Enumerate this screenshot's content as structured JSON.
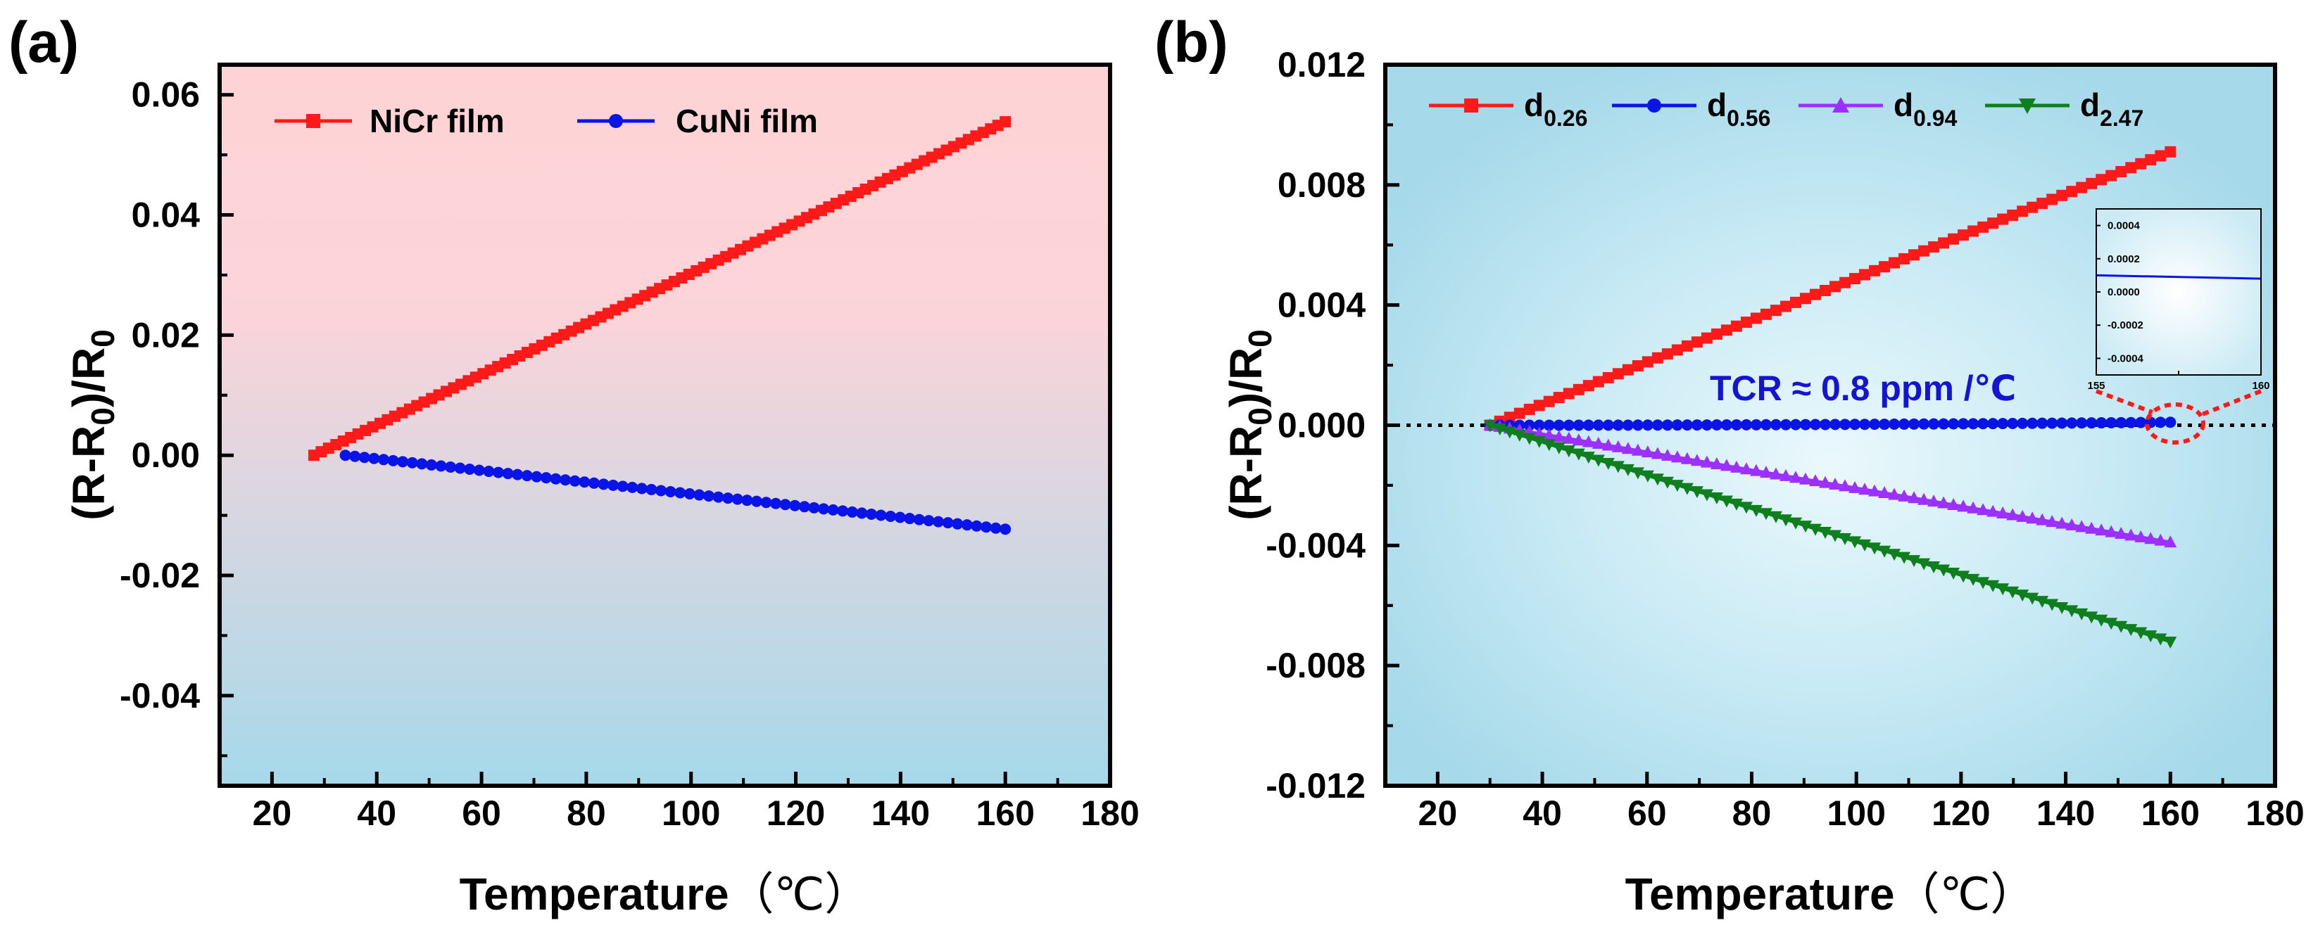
{
  "chart_data": [
    {
      "type": "line",
      "panel_label": "(a)",
      "xlabel": "Temperature",
      "xunit": "（℃）",
      "ylabel": "(R-R",
      "ylabel_sub": "0",
      "ylabel_mid": ")/R",
      "ylabel_sub2": "0",
      "xlim": [
        10,
        180
      ],
      "ylim": [
        -0.055,
        0.065
      ],
      "xticks": [
        20,
        40,
        60,
        80,
        100,
        120,
        140,
        160,
        180
      ],
      "xtick_labels": [
        "20",
        "40",
        "60",
        "80",
        "100",
        "120",
        "140",
        "160",
        "180"
      ],
      "yticks": [
        -0.04,
        -0.02,
        0.0,
        0.02,
        0.04,
        0.06
      ],
      "ytick_labels": [
        "-0.04",
        "-0.02",
        "0.00",
        "0.02",
        "0.04",
        "0.06"
      ],
      "background": {
        "top": "#ffd3d5",
        "bottom": "#a6d9ea"
      },
      "legend": {
        "placement": "top-left",
        "orientation": "horizontal"
      },
      "series": [
        {
          "name": "NiCr film",
          "color": "#ff1a1a",
          "marker": "square",
          "x_start": 28,
          "x_end": 160,
          "y_start": 0.0,
          "y_end": 0.0555,
          "n_points": 95
        },
        {
          "name": "CuNi film",
          "color": "#0a14e6",
          "marker": "circle",
          "x_start": 34,
          "x_end": 160,
          "y_start": 0.0,
          "y_end": -0.0123,
          "n_points": 70
        }
      ]
    },
    {
      "type": "line",
      "panel_label": "(b)",
      "xlabel": "Temperature",
      "xunit": "（℃）",
      "ylabel": "(R-R",
      "ylabel_sub": "0",
      "ylabel_mid": ")/R",
      "ylabel_sub2": "0",
      "xlim": [
        10,
        180
      ],
      "ylim": [
        -0.012,
        0.012
      ],
      "xticks": [
        20,
        40,
        60,
        80,
        100,
        120,
        140,
        160,
        180
      ],
      "xtick_labels": [
        "20",
        "40",
        "60",
        "80",
        "100",
        "120",
        "140",
        "160",
        "180"
      ],
      "yticks": [
        -0.012,
        -0.008,
        -0.004,
        0.0,
        0.004,
        0.008,
        0.012
      ],
      "ytick_labels": [
        "-0.012",
        "-0.008",
        "-0.004",
        "0.000",
        "0.004",
        "0.008",
        "0.012"
      ],
      "background": {
        "center": "#e8f7fc",
        "edge": "#a6d9ea"
      },
      "legend": {
        "placement": "top",
        "orientation": "horizontal"
      },
      "reference_line": {
        "y": 0.0,
        "style": "dotted",
        "color": "#000000"
      },
      "annotation": {
        "text": "TCR ≈ 0.8 ppm /℃",
        "color": "#1414d2",
        "x": 72,
        "y": 0.0006
      },
      "series": [
        {
          "name": "d",
          "sub": "0.26",
          "color": "#ff1a1a",
          "marker": "square",
          "x_start": 30,
          "x_end": 160,
          "y_start": 0.0,
          "y_end": 0.0091,
          "n_points": 70
        },
        {
          "name": "d",
          "sub": "0.56",
          "color": "#0a14e6",
          "marker": "circle",
          "x_start": 30,
          "x_end": 160,
          "y_start": 0.0,
          "y_end": 0.0001,
          "n_points": 70
        },
        {
          "name": "d",
          "sub": "0.94",
          "color": "#9b30ff",
          "marker": "triangle-up",
          "x_start": 30,
          "x_end": 160,
          "y_start": 0.0,
          "y_end": -0.0039,
          "n_points": 70
        },
        {
          "name": "d",
          "sub": "2.47",
          "color": "#0f7f1e",
          "marker": "triangle-down",
          "x_start": 30,
          "x_end": 160,
          "y_start": 0.0,
          "y_end": -0.0072,
          "n_points": 70
        }
      ],
      "inset": {
        "xlim": [
          155,
          160
        ],
        "ylim": [
          -0.0005,
          0.0005
        ],
        "xtick_labels": [
          "155",
          "160"
        ],
        "yticks": [
          0.0004,
          0.0002,
          0.0,
          -0.0002,
          -0.0004
        ],
        "ytick_labels": [
          "0.0004",
          "0.0002",
          "0.0000",
          "-0.0002",
          "-0.0004"
        ],
        "series": {
          "color": "#0a14e6",
          "x_start": 155,
          "x_end": 160,
          "y_start": 0.0001,
          "y_end": 8e-05
        }
      }
    }
  ]
}
